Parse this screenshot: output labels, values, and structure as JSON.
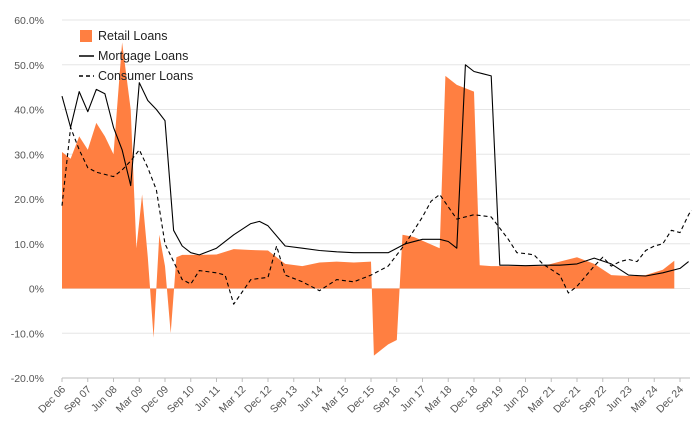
{
  "chart_data": {
    "type": "line",
    "y_axis": {
      "min": -20,
      "max": 60,
      "step": 10,
      "tick_labels": [
        "60.0%",
        "50.0%",
        "40.0%",
        "30.0%",
        "20.0%",
        "10.0%",
        "0%",
        "-10.0%",
        "-20.0%"
      ]
    },
    "x_axis": {
      "start_month": "Dec 06",
      "end_month": "Dec 24",
      "tick_labels": [
        "Dec 06",
        "Sep 07",
        "Jun 08",
        "Mar 09",
        "Dec 09",
        "Sep 10",
        "Jun 11",
        "Mar 12",
        "Dec 12",
        "Sep 13",
        "Jun 14",
        "Mar 15",
        "Dec 15",
        "Sep 16",
        "Jun 17",
        "Mar 18",
        "Dec 18",
        "Sep 19",
        "Jun 20",
        "Mar 21",
        "Dec 21",
        "Sep 22",
        "Jun 23",
        "Mar 24",
        "Dec 24"
      ]
    },
    "grid": "horizontal",
    "legend_position": "top-left",
    "series": [
      {
        "name": "Retail Loans",
        "style": "area",
        "color": "#FF7F41",
        "points": [
          [
            "Dec 06",
            30.5
          ],
          [
            "Mar 07",
            29
          ],
          [
            "Jun 07",
            34
          ],
          [
            "Sep 07",
            31
          ],
          [
            "Dec 07",
            37
          ],
          [
            "Mar 08",
            34
          ],
          [
            "Jun 08",
            30
          ],
          [
            "Sep 08",
            55
          ],
          [
            "Dec 08",
            40
          ],
          [
            "Feb 09",
            9
          ],
          [
            "Apr 09",
            21
          ],
          [
            "Jun 09",
            7
          ],
          [
            "Aug 09",
            -11
          ],
          [
            "Oct 09",
            12
          ],
          [
            "Dec 09",
            5
          ],
          [
            "Feb 10",
            -10
          ],
          [
            "Apr 10",
            7
          ],
          [
            "Jun 10",
            7.5
          ],
          [
            "Dec 10",
            7.5
          ],
          [
            "Jun 11",
            7.6
          ],
          [
            "Dec 11",
            8.8
          ],
          [
            "Jun 12",
            8.6
          ],
          [
            "Dec 12",
            8.5
          ],
          [
            "Jun 13",
            5.5
          ],
          [
            "Dec 13",
            5
          ],
          [
            "Jun 14",
            5.8
          ],
          [
            "Dec 14",
            6
          ],
          [
            "Jun 15",
            5.8
          ],
          [
            "Dec 15",
            6
          ],
          [
            "Jan 16",
            -15
          ],
          [
            "Jun 16",
            -12.5
          ],
          [
            "Sep 16",
            -11.5
          ],
          [
            "Nov 16",
            12
          ],
          [
            "Mar 17",
            11.5
          ],
          [
            "Dec 17",
            9
          ],
          [
            "Feb 18",
            47.5
          ],
          [
            "Jun 18",
            45.5
          ],
          [
            "Dec 18",
            44
          ],
          [
            "Feb 19",
            5.2
          ],
          [
            "Jun 19",
            5
          ],
          [
            "Dec 19",
            5
          ],
          [
            "Jun 20",
            5
          ],
          [
            "Dec 20",
            5
          ],
          [
            "Jun 21",
            6
          ],
          [
            "Dec 21",
            7
          ],
          [
            "Jun 22",
            5.5
          ],
          [
            "Dec 22",
            3
          ],
          [
            "Jun 23",
            2.8
          ],
          [
            "Dec 23",
            3
          ],
          [
            "Jun 24",
            4.2
          ],
          [
            "Oct 24",
            6.2
          ]
        ]
      },
      {
        "name": "Mortgage Loans",
        "style": "solid",
        "color": "#000000",
        "points": [
          [
            "Dec 06",
            43
          ],
          [
            "Mar 07",
            36
          ],
          [
            "Jun 07",
            44
          ],
          [
            "Sep 07",
            39.5
          ],
          [
            "Dec 07",
            44.5
          ],
          [
            "Mar 08",
            43.5
          ],
          [
            "Jun 08",
            36
          ],
          [
            "Sep 08",
            31
          ],
          [
            "Dec 08",
            23
          ],
          [
            "Mar 09",
            46
          ],
          [
            "Jun 09",
            42
          ],
          [
            "Sep 09",
            40
          ],
          [
            "Dec 09",
            37.5
          ],
          [
            "Mar 10",
            13
          ],
          [
            "Jun 10",
            9.5
          ],
          [
            "Sep 10",
            8
          ],
          [
            "Dec 10",
            7.5
          ],
          [
            "Jun 11",
            9
          ],
          [
            "Dec 11",
            12
          ],
          [
            "Jun 12",
            14.5
          ],
          [
            "Sep 12",
            15
          ],
          [
            "Dec 12",
            14
          ],
          [
            "Jun 13",
            9.5
          ],
          [
            "Dec 13",
            9
          ],
          [
            "Jun 14",
            8.5
          ],
          [
            "Dec 14",
            8.2
          ],
          [
            "Jun 15",
            8
          ],
          [
            "Dec 15",
            8
          ],
          [
            "Jun 16",
            8
          ],
          [
            "Dec 16",
            10
          ],
          [
            "Jun 17",
            11
          ],
          [
            "Dec 17",
            11
          ],
          [
            "Mar 18",
            10.5
          ],
          [
            "Jun 18",
            9
          ],
          [
            "Sep 18",
            50
          ],
          [
            "Dec 18",
            48.5
          ],
          [
            "Mar 19",
            48
          ],
          [
            "Jun 19",
            47.5
          ],
          [
            "Sep 19",
            5.2
          ],
          [
            "Dec 19",
            5.2
          ],
          [
            "Jun 20",
            5.1
          ],
          [
            "Dec 20",
            5.2
          ],
          [
            "Jun 21",
            5.2
          ],
          [
            "Dec 21",
            5.5
          ],
          [
            "Jun 22",
            6.8
          ],
          [
            "Dec 22",
            5.5
          ],
          [
            "Jun 23",
            3
          ],
          [
            "Dec 23",
            2.8
          ],
          [
            "Jun 24",
            3.5
          ],
          [
            "Dec 24",
            4.5
          ],
          [
            "Mar 25",
            6
          ]
        ]
      },
      {
        "name": "Consumer Loans",
        "style": "dashed",
        "color": "#000000",
        "points": [
          [
            "Dec 06",
            18.5
          ],
          [
            "Mar 07",
            36
          ],
          [
            "Jun 07",
            31
          ],
          [
            "Sep 07",
            27
          ],
          [
            "Dec 07",
            26
          ],
          [
            "Mar 08",
            25.5
          ],
          [
            "Jun 08",
            25
          ],
          [
            "Sep 08",
            26.5
          ],
          [
            "Dec 08",
            28.5
          ],
          [
            "Mar 09",
            31
          ],
          [
            "Jun 09",
            27
          ],
          [
            "Sep 09",
            22
          ],
          [
            "Dec 09",
            10
          ],
          [
            "Mar 10",
            6
          ],
          [
            "Jun 10",
            2
          ],
          [
            "Sep 10",
            1
          ],
          [
            "Dec 10",
            4
          ],
          [
            "Jun 11",
            3.5
          ],
          [
            "Sep 11",
            3
          ],
          [
            "Dec 11",
            -3.5
          ],
          [
            "Jun 12",
            2
          ],
          [
            "Dec 12",
            2.5
          ],
          [
            "Mar 13",
            9.5
          ],
          [
            "Jun 13",
            3
          ],
          [
            "Dec 13",
            1.5
          ],
          [
            "Jun 14",
            -0.5
          ],
          [
            "Dec 14",
            2
          ],
          [
            "Jun 15",
            1.5
          ],
          [
            "Dec 15",
            3
          ],
          [
            "Jun 16",
            5
          ],
          [
            "Dec 16",
            10
          ],
          [
            "Jun 17",
            16
          ],
          [
            "Sep 17",
            19.5
          ],
          [
            "Dec 17",
            21
          ],
          [
            "Jun 18",
            15.5
          ],
          [
            "Dec 18",
            16.5
          ],
          [
            "Jun 19",
            16
          ],
          [
            "Dec 19",
            11
          ],
          [
            "Mar 20",
            8
          ],
          [
            "Jun 20",
            7.8
          ],
          [
            "Sep 20",
            7.5
          ],
          [
            "Dec 20",
            5.5
          ],
          [
            "Jun 21",
            3
          ],
          [
            "Sep 21",
            -1
          ],
          [
            "Dec 21",
            0.5
          ],
          [
            "Jun 22",
            5
          ],
          [
            "Sep 22",
            7
          ],
          [
            "Dec 22",
            5
          ],
          [
            "Mar 23",
            6
          ],
          [
            "Jun 23",
            6.5
          ],
          [
            "Sep 23",
            6
          ],
          [
            "Dec 23",
            8.5
          ],
          [
            "Mar 24",
            9.5
          ],
          [
            "Jun 24",
            10
          ],
          [
            "Sep 24",
            13
          ],
          [
            "Dec 24",
            12.5
          ],
          [
            "Mar 25",
            16.5
          ],
          [
            "Apr 25",
            17.5
          ]
        ]
      }
    ]
  }
}
